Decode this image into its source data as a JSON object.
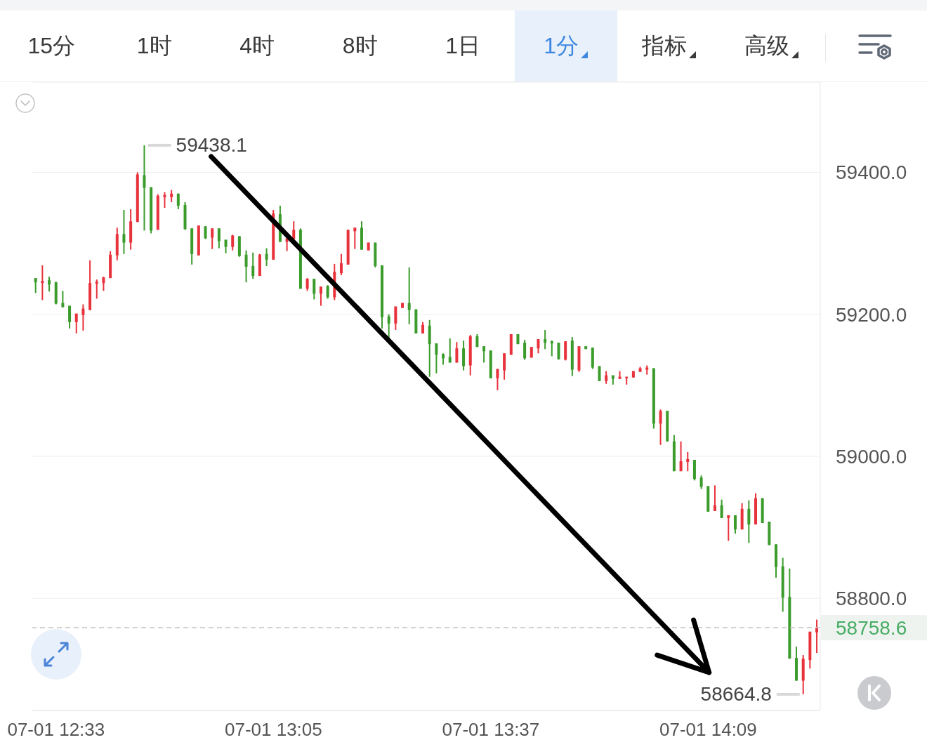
{
  "chart_data": {
    "type": "candlestick",
    "categories": [
      null,
      null,
      null,
      "07-01 12:33",
      null,
      null,
      null,
      null,
      null,
      null,
      null,
      null,
      null,
      null,
      null,
      null,
      null,
      null,
      null,
      null,
      null,
      null,
      null,
      null,
      null,
      null,
      null,
      null,
      null,
      null,
      null,
      null,
      null,
      null,
      null,
      "07-01 13:05",
      null,
      null,
      null,
      null,
      null,
      null,
      null,
      null,
      null,
      null,
      null,
      null,
      null,
      null,
      null,
      null,
      null,
      null,
      null,
      null,
      null,
      null,
      null,
      null,
      null,
      null,
      null,
      null,
      null,
      null,
      null,
      "07-01 13:37",
      null,
      null,
      null,
      null,
      null,
      null,
      null,
      null,
      null,
      null,
      null,
      null,
      null,
      null,
      null,
      null,
      null,
      null,
      null,
      null,
      null,
      null,
      null,
      null,
      null,
      null,
      null,
      null,
      null,
      null,
      null,
      "07-01 14:09",
      null,
      null,
      null,
      null,
      null,
      null,
      null,
      null,
      null,
      null,
      null,
      null,
      null,
      null,
      null,
      null
    ],
    "ohlc": [
      [
        59251,
        59251,
        59230,
        59245
      ],
      [
        59244,
        59269,
        59220,
        59247
      ],
      [
        59248,
        59253,
        59232,
        59242
      ],
      [
        59245,
        59246,
        59214,
        59215
      ],
      [
        59216,
        59233,
        59210,
        59210
      ],
      [
        59212,
        59212,
        59180,
        59189
      ],
      [
        59189,
        59201,
        59173,
        59201
      ],
      [
        59199,
        59214,
        59177,
        59208
      ],
      [
        59206,
        59276,
        59206,
        59244
      ],
      [
        59243,
        59249,
        59222,
        59246
      ],
      [
        59244,
        59253,
        59233,
        59252
      ],
      [
        59251,
        59289,
        59251,
        59284
      ],
      [
        59283,
        59322,
        59276,
        59313
      ],
      [
        59313,
        59347,
        59285,
        59301
      ],
      [
        59301,
        59348,
        59291,
        59331
      ],
      [
        59330,
        59400,
        59330,
        59397
      ],
      [
        59396,
        59438.1,
        59318,
        59378
      ],
      [
        59379,
        59379,
        59314,
        59318
      ],
      [
        59319,
        59369,
        59319,
        59367
      ],
      [
        59365,
        59372,
        59350,
        59368
      ],
      [
        59365,
        59375,
        59358,
        59370
      ],
      [
        59370,
        59370,
        59348,
        59353
      ],
      [
        59354,
        59358,
        59319,
        59320
      ],
      [
        59321,
        59321,
        59270,
        59285
      ],
      [
        59283,
        59325,
        59283,
        59325
      ],
      [
        59324,
        59324,
        59306,
        59307
      ],
      [
        59308,
        59321,
        59292,
        59321
      ],
      [
        59321,
        59321,
        59293,
        59303
      ],
      [
        59305,
        59305,
        59286,
        59295
      ],
      [
        59295,
        59312,
        59290,
        59311
      ],
      [
        59310,
        59310,
        59281,
        59282
      ],
      [
        59284,
        59290,
        59245,
        59267
      ],
      [
        59268,
        59287,
        59250,
        59254
      ],
      [
        59254,
        59285,
        59254,
        59284
      ],
      [
        59285,
        59293,
        59268,
        59277
      ],
      [
        59277,
        59347,
        59277,
        59342
      ],
      [
        59341,
        59353,
        59302,
        59302
      ],
      [
        59302,
        59307,
        59289,
        59307
      ],
      [
        59306,
        59331,
        59306,
        59319
      ],
      [
        59319,
        59321,
        59236,
        59236
      ],
      [
        59236,
        59251,
        59233,
        59250
      ],
      [
        59250,
        59250,
        59221,
        59229
      ],
      [
        59229,
        59239,
        59212,
        59239
      ],
      [
        59240,
        59241,
        59222,
        59224
      ],
      [
        59224,
        59271,
        59220,
        59260
      ],
      [
        59258,
        59285,
        59255,
        59272
      ],
      [
        59270,
        59319,
        59270,
        59319
      ],
      [
        59317,
        59322,
        59292,
        59322
      ],
      [
        59322,
        59331,
        59291,
        59291
      ],
      [
        59290,
        59301,
        59290,
        59301
      ],
      [
        59301,
        59301,
        59266,
        59268
      ],
      [
        59269,
        59269,
        59180,
        59196
      ],
      [
        59197,
        59200,
        59164,
        59187
      ],
      [
        59187,
        59211,
        59178,
        59211
      ],
      [
        59209,
        59216,
        59209,
        59216
      ],
      [
        59216,
        59266,
        59186,
        59206
      ],
      [
        59207,
        59207,
        59173,
        59173
      ],
      [
        59173,
        59189,
        59173,
        59185
      ],
      [
        59184,
        59192,
        59112,
        59158
      ],
      [
        59159,
        59159,
        59117,
        59143
      ],
      [
        59144,
        59145,
        59129,
        59138
      ],
      [
        59140,
        59166,
        59132,
        59132
      ],
      [
        59132,
        59161,
        59132,
        59152
      ],
      [
        59152,
        59163,
        59121,
        59127
      ],
      [
        59128,
        59171,
        59114,
        59169
      ],
      [
        59169,
        59172,
        59154,
        59154
      ],
      [
        59155,
        59155,
        59132,
        59148
      ],
      [
        59149,
        59149,
        59110,
        59110
      ],
      [
        59110,
        59123,
        59093,
        59123
      ],
      [
        59121,
        59145,
        59108,
        59145
      ],
      [
        59143,
        59172,
        59143,
        59172
      ],
      [
        59172,
        59172,
        59158,
        59158
      ],
      [
        59160,
        59164,
        59136,
        59138
      ],
      [
        59139,
        59154,
        59139,
        59154
      ],
      [
        59152,
        59165,
        59145,
        59165
      ],
      [
        59165,
        59178,
        59151,
        59160
      ],
      [
        59162,
        59163,
        59141,
        59159
      ],
      [
        59160,
        59160,
        59136,
        59137
      ],
      [
        59136,
        59162,
        59135,
        59162
      ],
      [
        59163,
        59168,
        59113,
        59122
      ],
      [
        59121,
        59155,
        59119,
        59155
      ],
      [
        59155,
        59155,
        59151,
        59151
      ],
      [
        59153,
        59153,
        59123,
        59125
      ],
      [
        59127,
        59127,
        59106,
        59106
      ],
      [
        59106,
        59120,
        59102,
        59114
      ],
      [
        59114,
        59114,
        59101,
        59109
      ],
      [
        59109,
        59120,
        59109,
        59112
      ],
      [
        59110,
        59112,
        59101,
        59112
      ],
      [
        59111,
        59120,
        59111,
        59120
      ],
      [
        59119,
        59126,
        59119,
        59124
      ],
      [
        59122,
        59128,
        59115,
        59125
      ],
      [
        59124,
        59124,
        59039,
        59046
      ],
      [
        59046,
        59066,
        59016,
        59064
      ],
      [
        59064,
        59064,
        59021,
        59021
      ],
      [
        59021,
        59030,
        58979,
        58979
      ],
      [
        58979,
        59021,
        58979,
        58993
      ],
      [
        58992,
        59006,
        58979,
        58996
      ],
      [
        58995,
        58995,
        58966,
        58968
      ],
      [
        58970,
        58973,
        58954,
        58957
      ],
      [
        58958,
        58958,
        58922,
        58922
      ],
      [
        58923,
        58959,
        58923,
        58931
      ],
      [
        58931,
        58939,
        58913,
        58913
      ],
      [
        58913,
        58917,
        58881,
        58917
      ],
      [
        58917,
        58917,
        58891,
        58897
      ],
      [
        58897,
        58934,
        58897,
        58926
      ],
      [
        58926,
        58938,
        58878,
        58904
      ],
      [
        58904,
        58948,
        58904,
        58941
      ],
      [
        58941,
        58941,
        58906,
        58906
      ],
      [
        58908,
        58908,
        58875,
        58875
      ],
      [
        58876,
        58876,
        58829,
        58844
      ],
      [
        58845,
        58857,
        58781,
        58801
      ],
      [
        58802,
        58842,
        58715,
        58715
      ],
      [
        58716,
        58732,
        58684,
        58684
      ],
      [
        58684,
        58720,
        58664.8,
        58715
      ],
      [
        58713,
        58753,
        58701,
        58753
      ],
      [
        58752,
        58770,
        58723,
        58758.6
      ]
    ],
    "colors": [
      "#3b9c2c",
      "#e8323c",
      "#3b9c2c",
      "#3b9c2c",
      "#3b9c2c",
      "#3b9c2c",
      "#e8323c",
      "#e8323c",
      "#e8323c",
      "#e8323c",
      "#e8323c",
      "#e8323c",
      "#e8323c",
      "#3b9c2c",
      "#e8323c",
      "#e8323c",
      "#3b9c2c",
      "#3b9c2c",
      "#e8323c",
      "#e8323c",
      "#e8323c",
      "#3b9c2c",
      "#3b9c2c",
      "#3b9c2c",
      "#e8323c",
      "#3b9c2c",
      "#e8323c",
      "#3b9c2c",
      "#3b9c2c",
      "#e8323c",
      "#3b9c2c",
      "#3b9c2c",
      "#3b9c2c",
      "#e8323c",
      "#3b9c2c",
      "#e8323c",
      "#3b9c2c",
      "#e8323c",
      "#e8323c",
      "#3b9c2c",
      "#e8323c",
      "#3b9c2c",
      "#e8323c",
      "#3b9c2c",
      "#e8323c",
      "#e8323c",
      "#e8323c",
      "#e8323c",
      "#3b9c2c",
      "#e8323c",
      "#3b9c2c",
      "#3b9c2c",
      "#3b9c2c",
      "#e8323c",
      "#e8323c",
      "#3b9c2c",
      "#3b9c2c",
      "#e8323c",
      "#3b9c2c",
      "#3b9c2c",
      "#3b9c2c",
      "#3b9c2c",
      "#e8323c",
      "#3b9c2c",
      "#e8323c",
      "#3b9c2c",
      "#3b9c2c",
      "#3b9c2c",
      "#e8323c",
      "#e8323c",
      "#e8323c",
      "#3b9c2c",
      "#3b9c2c",
      "#e8323c",
      "#e8323c",
      "#3b9c2c",
      "#3b9c2c",
      "#3b9c2c",
      "#e8323c",
      "#3b9c2c",
      "#e8323c",
      "#3b9c2c",
      "#3b9c2c",
      "#3b9c2c",
      "#e8323c",
      "#3b9c2c",
      "#e8323c",
      "#e8323c",
      "#e8323c",
      "#e8323c",
      "#e8323c",
      "#3b9c2c",
      "#e8323c",
      "#3b9c2c",
      "#3b9c2c",
      "#e8323c",
      "#e8323c",
      "#3b9c2c",
      "#3b9c2c",
      "#3b9c2c",
      "#e8323c",
      "#3b9c2c",
      "#e8323c",
      "#3b9c2c",
      "#e8323c",
      "#3b9c2c",
      "#e8323c",
      "#3b9c2c",
      "#3b9c2c",
      "#3b9c2c",
      "#3b9c2c",
      "#3b9c2c",
      "#3b9c2c",
      "#e8323c",
      "#e8323c",
      "#e8323c"
    ],
    "ylim": [
      58642,
      59527
    ],
    "yticks": [
      {
        "value": 58800,
        "label": "58800.0"
      },
      {
        "value": 59000,
        "label": "59000.0"
      },
      {
        "value": 59200,
        "label": "59200.0"
      },
      {
        "value": 59400,
        "label": "59400.0"
      }
    ],
    "grid": "y",
    "ref_lines": [
      {
        "axis": "y",
        "value": 58758.6,
        "label": "58758.6",
        "color": "#c4c4c4",
        "line_style": "dashed"
      }
    ],
    "annotations": [
      "59438.1",
      "58664.8",
      "15分",
      "1时",
      "4时",
      "8时",
      "1日",
      "1分",
      "指标",
      "高级"
    ]
  }
}
